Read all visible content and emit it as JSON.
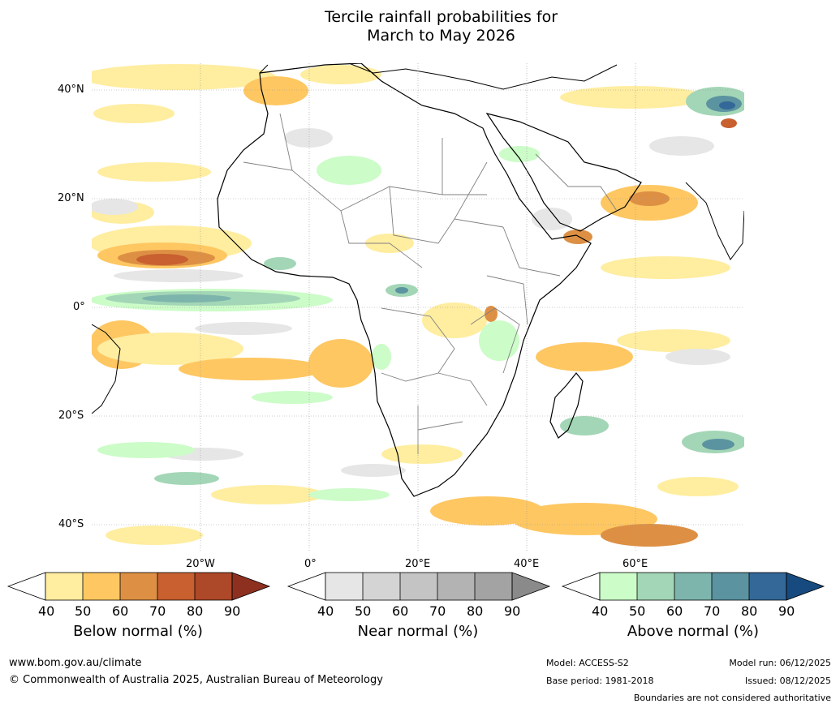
{
  "title": {
    "line1": "Tercile rainfall probabilities for",
    "line2": "March to May 2026"
  },
  "map": {
    "lat_labels": [
      "40°N",
      "20°N",
      "0°",
      "20°S",
      "40°S"
    ],
    "lon_labels": [
      "20°W",
      "0°",
      "20°E",
      "40°E",
      "60°E"
    ],
    "colors": {
      "land_outline": "#000000",
      "border": "#808080",
      "grid": "#9a9a9a"
    }
  },
  "colorbars": [
    {
      "title": "Below normal (%)",
      "ticks": [
        "40",
        "50",
        "60",
        "70",
        "80",
        "90"
      ],
      "colors": [
        "#ffffff",
        "#ffeda0",
        "#fec762",
        "#dd9044",
        "#c86030",
        "#ad4828",
        "#8e3020"
      ]
    },
    {
      "title": "Near normal (%)",
      "ticks": [
        "40",
        "50",
        "60",
        "70",
        "80",
        "90"
      ],
      "colors": [
        "#ffffff",
        "#e6e6e6",
        "#d4d4d4",
        "#c4c4c4",
        "#b3b3b3",
        "#a3a3a3",
        "#8a8a8a"
      ]
    },
    {
      "title": "Above normal (%)",
      "ticks": [
        "40",
        "50",
        "60",
        "70",
        "80",
        "90"
      ],
      "colors": [
        "#ffffff",
        "#ccfcc8",
        "#a3d6b6",
        "#7db5ad",
        "#5b93a0",
        "#336898",
        "#174a7e"
      ]
    }
  ],
  "footer": {
    "website": "www.bom.gov.au/climate",
    "copyright": "© Commonwealth of Australia 2025, Australian Bureau of Meteorology",
    "model": "Model: ACCESS-S2",
    "base_period": "Base period: 1981-2018",
    "model_run": "Model run: 06/12/2025",
    "issued": "Issued: 08/12/2025",
    "disclaimer": "Boundaries are not considered authoritative"
  }
}
